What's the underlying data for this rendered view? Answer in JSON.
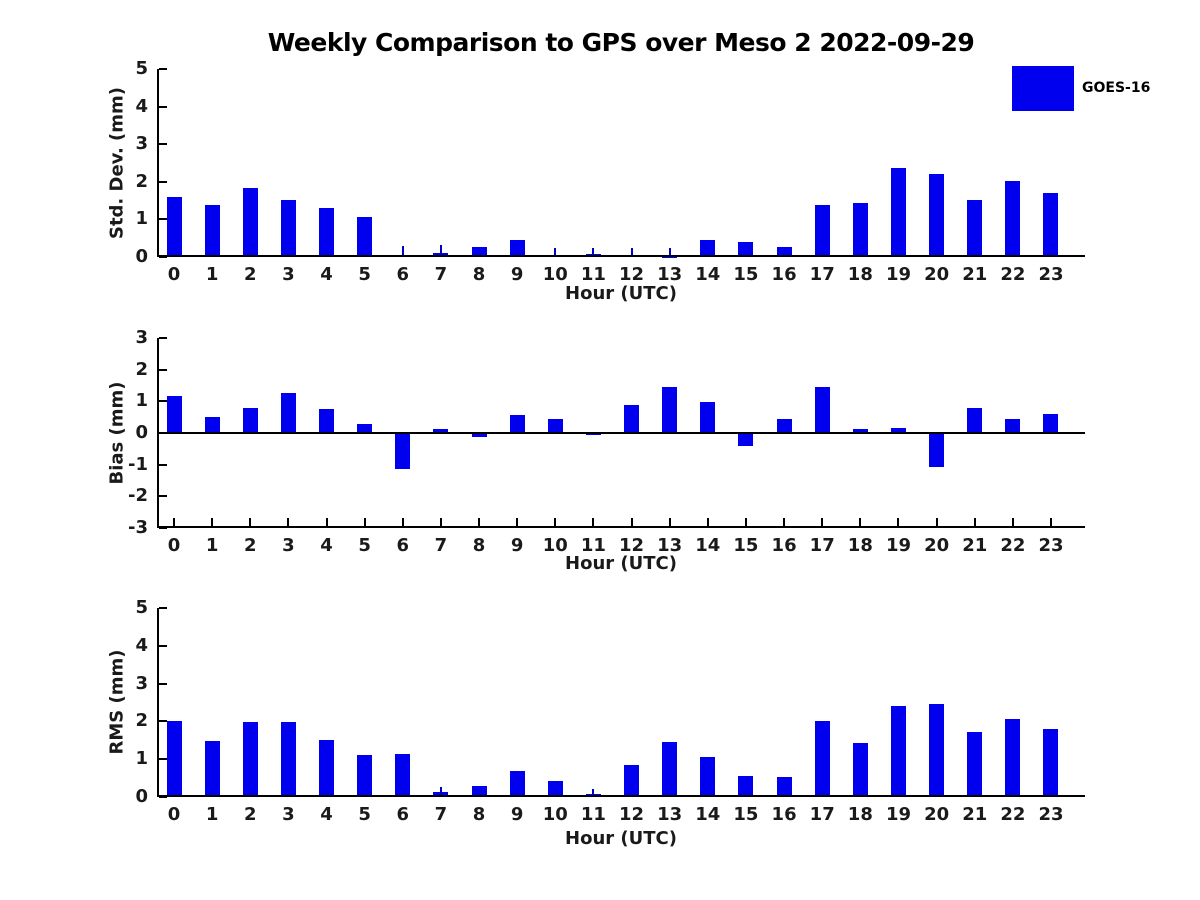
{
  "figure": {
    "title": "Weekly Comparison to GPS over Meso 2 2022-09-29",
    "legend": {
      "label": "GOES-16",
      "color": "#0000EE",
      "position": "upper right"
    }
  },
  "chart_data": [
    {
      "type": "bar",
      "series": "GOES-16",
      "ylabel": "Std. Dev. (mm)",
      "xlabel": "Hour (UTC)",
      "bar_color": "#0000EE",
      "ylim": [
        0,
        5
      ],
      "yticks": [
        0,
        1,
        2,
        3,
        4,
        5
      ],
      "grid": false,
      "categories": [
        "0",
        "1",
        "2",
        "3",
        "4",
        "5",
        "6",
        "7",
        "8",
        "9",
        "10",
        "11",
        "12",
        "13",
        "14",
        "15",
        "16",
        "17",
        "18",
        "19",
        "20",
        "21",
        "22",
        "23"
      ],
      "values": [
        1.6,
        1.37,
        1.83,
        1.52,
        1.31,
        1.06,
        0.04,
        0.1,
        0.26,
        0.44,
        0.04,
        0.07,
        0.05,
        0.01,
        0.46,
        0.39,
        0.27,
        1.38,
        1.44,
        2.38,
        2.21,
        1.52,
        2.01,
        1.71
      ],
      "error_whisker_tops": {
        "6": 0.3,
        "7": 0.33,
        "10": 0.23,
        "11": 0.25,
        "12": 0.23,
        "13": 0.23
      }
    },
    {
      "type": "bar",
      "series": "GOES-16",
      "ylabel": "Bias (mm)",
      "xlabel": "Hour (UTC)",
      "bar_color": "#0000EE",
      "ylim": [
        -3,
        3
      ],
      "yticks": [
        -3,
        -2,
        -1,
        0,
        1,
        2,
        3
      ],
      "grid": false,
      "categories": [
        "0",
        "1",
        "2",
        "3",
        "4",
        "5",
        "6",
        "7",
        "8",
        "9",
        "10",
        "11",
        "12",
        "13",
        "14",
        "15",
        "16",
        "17",
        "18",
        "19",
        "20",
        "21",
        "22",
        "23"
      ],
      "values": [
        1.18,
        0.52,
        0.8,
        1.27,
        0.77,
        0.3,
        -1.13,
        0.12,
        -0.13,
        0.58,
        0.45,
        -0.05,
        0.87,
        1.45,
        0.98,
        -0.4,
        0.45,
        1.45,
        0.13,
        0.16,
        -1.06,
        0.8,
        0.45,
        0.6
      ],
      "error_whisker_tops": {}
    },
    {
      "type": "bar",
      "series": "GOES-16",
      "ylabel": "RMS (mm)",
      "xlabel": "Hour (UTC)",
      "bar_color": "#0000EE",
      "ylim": [
        0,
        5
      ],
      "yticks": [
        0,
        1,
        2,
        3,
        4,
        5
      ],
      "grid": false,
      "categories": [
        "0",
        "1",
        "2",
        "3",
        "4",
        "5",
        "6",
        "7",
        "8",
        "9",
        "10",
        "11",
        "12",
        "13",
        "14",
        "15",
        "16",
        "17",
        "18",
        "19",
        "20",
        "21",
        "22",
        "23"
      ],
      "values": [
        2.02,
        1.47,
        1.99,
        1.98,
        1.51,
        1.1,
        1.14,
        0.12,
        0.28,
        0.7,
        0.42,
        0.08,
        0.85,
        1.46,
        1.06,
        0.56,
        0.52,
        2.01,
        1.44,
        2.4,
        2.46,
        1.73,
        2.07,
        1.8
      ],
      "error_whisker_tops": {
        "7": 0.26,
        "11": 0.21
      }
    }
  ]
}
